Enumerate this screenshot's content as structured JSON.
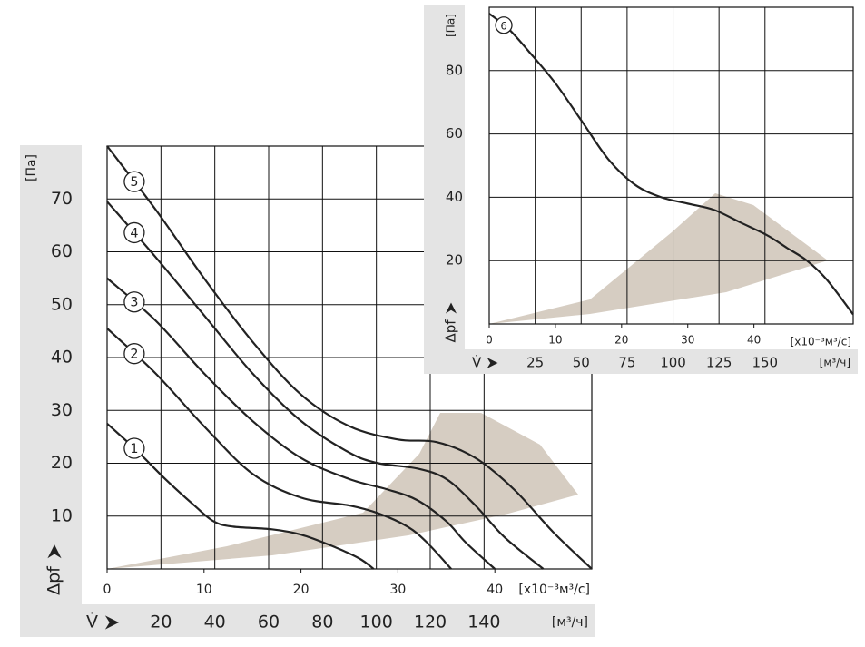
{
  "chart_data": [
    {
      "type": "line",
      "y_label": "Δpf",
      "y_unit": "[Па]",
      "x_unit": "[x10⁻³м³/с]",
      "x2_label": "V̇",
      "x2_unit": "[м³/ч]",
      "xlim": [
        0,
        50
      ],
      "xticks": [
        0,
        10,
        20,
        30,
        40
      ],
      "ylim": [
        0,
        80
      ],
      "yticks": [
        10,
        20,
        30,
        40,
        50,
        60,
        70
      ],
      "x2lim": [
        0,
        180
      ],
      "x2ticks": [
        20,
        40,
        60,
        80,
        100,
        120,
        140
      ],
      "grid": true,
      "series": [
        {
          "name": "1",
          "color": "#222222",
          "x": [
            0,
            3,
            6,
            9,
            11,
            13,
            17,
            20,
            23,
            26,
            27.5
          ],
          "values": [
            27.5,
            22.5,
            17,
            12,
            9,
            8,
            7.5,
            6.5,
            4.5,
            2,
            0
          ]
        },
        {
          "name": "2",
          "color": "#222222",
          "x": [
            0,
            5,
            10,
            15,
            20,
            25,
            28,
            31,
            33,
            35.5
          ],
          "values": [
            45.5,
            37,
            27,
            18,
            13.5,
            12,
            10.5,
            8,
            5,
            0
          ]
        },
        {
          "name": "3",
          "color": "#222222",
          "x": [
            0,
            5,
            10,
            15,
            20,
            25,
            29,
            32,
            35,
            37,
            40
          ],
          "values": [
            55,
            47,
            37,
            28,
            21,
            17,
            15,
            13,
            9,
            5,
            0
          ]
        },
        {
          "name": "4",
          "color": "#222222",
          "x": [
            0,
            5,
            10,
            15,
            20,
            25,
            28,
            32,
            35,
            38,
            41,
            45
          ],
          "values": [
            69.5,
            59,
            48,
            37,
            28,
            22,
            20,
            19,
            17,
            12,
            6,
            0
          ]
        },
        {
          "name": "5",
          "color": "#222222",
          "x": [
            0,
            5,
            10,
            15,
            20,
            25,
            30,
            34,
            38,
            42,
            46,
            50
          ],
          "values": [
            80,
            68,
            55,
            43,
            33,
            27,
            24.5,
            24,
            21,
            15,
            7,
            0
          ]
        }
      ]
    },
    {
      "type": "line",
      "y_label": "Δpf",
      "y_unit": "[Па]",
      "x_unit": "[x10⁻³м³/с]",
      "x2_label": "V̇",
      "x2_unit": "[м³/ч]",
      "xlim": [
        0,
        55
      ],
      "xticks": [
        0,
        10,
        20,
        30,
        40
      ],
      "ylim": [
        0,
        100
      ],
      "yticks": [
        20,
        40,
        60,
        80
      ],
      "x2lim": [
        0,
        198
      ],
      "x2ticks": [
        25,
        50,
        75,
        100,
        125,
        150
      ],
      "grid": true,
      "series": [
        {
          "name": "6",
          "color": "#222222",
          "x": [
            0,
            3,
            6,
            10,
            14,
            18,
            22,
            26,
            30,
            34,
            38,
            42,
            45,
            48,
            51,
            55
          ],
          "values": [
            98,
            93,
            86,
            76,
            64,
            52,
            44,
            40,
            38,
            36,
            32,
            28,
            24,
            20,
            14,
            3
          ]
        }
      ]
    }
  ]
}
